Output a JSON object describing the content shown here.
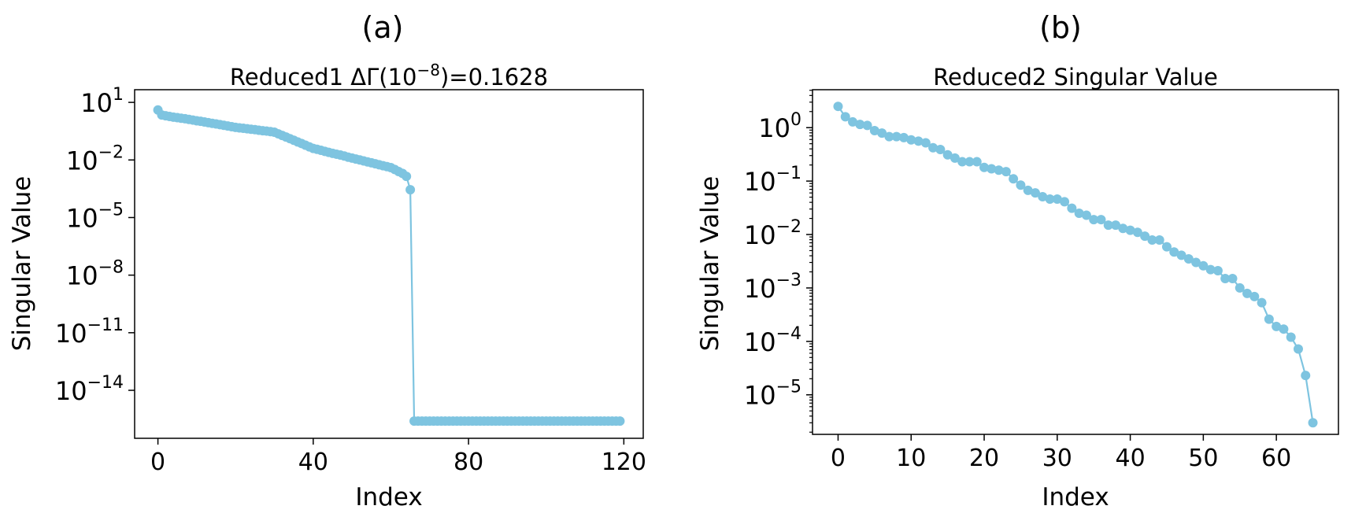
{
  "chart_data": [
    {
      "type": "line",
      "panel_label": "(a)",
      "title": {
        "prefix": "Reduced1 ΔΓ(10",
        "sup": "−8",
        "suffix": ")=0.1628"
      },
      "xlabel": "Index",
      "ylabel": "Singular Value",
      "yscale": "log",
      "xlim": [
        -6,
        125
      ],
      "ylim_log10": [
        1.66,
        -16.5
      ],
      "xticks": [
        {
          "value": 0,
          "label": "0"
        },
        {
          "value": 40,
          "label": "40"
        },
        {
          "value": 80,
          "label": "80"
        },
        {
          "value": 120,
          "label": "120"
        }
      ],
      "yticks": [
        {
          "exp": 1,
          "base": "10",
          "sup": "1"
        },
        {
          "exp": -2,
          "base": "10",
          "sup": "−2"
        },
        {
          "exp": -5,
          "base": "10",
          "sup": "−5"
        },
        {
          "exp": -8,
          "base": "10",
          "sup": "−8"
        },
        {
          "exp": -11,
          "base": "10",
          "sup": "−11"
        },
        {
          "exp": -14,
          "base": "10",
          "sup": "−14"
        }
      ],
      "color": "#7ec4e0",
      "x_start": 0,
      "values": [
        4.0,
        2.2,
        2.0,
        1.85,
        1.7,
        1.6,
        1.5,
        1.4,
        1.3,
        1.2,
        1.1,
        1.03,
        0.95,
        0.88,
        0.81,
        0.75,
        0.69,
        0.64,
        0.59,
        0.54,
        0.5,
        0.47,
        0.45,
        0.42,
        0.4,
        0.38,
        0.355,
        0.335,
        0.32,
        0.3,
        0.28,
        0.23,
        0.19,
        0.157,
        0.129,
        0.106,
        0.087,
        0.072,
        0.059,
        0.048,
        0.04,
        0.036,
        0.032,
        0.028,
        0.025,
        0.022,
        0.02,
        0.018,
        0.016,
        0.014,
        0.0126,
        0.0112,
        0.01,
        0.0089,
        0.0079,
        0.0071,
        0.0063,
        0.0056,
        0.005,
        0.0045,
        0.004,
        0.0032,
        0.0025,
        0.002,
        0.0014,
        0.00028,
        2.5e-16,
        2.5e-16,
        2.5e-16,
        2.5e-16,
        2.5e-16,
        2.5e-16,
        2.5e-16,
        2.5e-16,
        2.5e-16,
        2.5e-16,
        2.5e-16,
        2.5e-16,
        2.5e-16,
        2.5e-16,
        2.5e-16,
        2.5e-16,
        2.5e-16,
        2.5e-16,
        2.5e-16,
        2.5e-16,
        2.5e-16,
        2.5e-16,
        2.5e-16,
        2.5e-16,
        2.5e-16,
        2.5e-16,
        2.5e-16,
        2.5e-16,
        2.5e-16,
        2.5e-16,
        2.5e-16,
        2.5e-16,
        2.5e-16,
        2.5e-16,
        2.5e-16,
        2.5e-16,
        2.5e-16,
        2.5e-16,
        2.5e-16,
        2.5e-16,
        2.5e-16,
        2.5e-16,
        2.5e-16,
        2.5e-16,
        2.5e-16,
        2.5e-16,
        2.5e-16,
        2.5e-16,
        2.5e-16,
        2.5e-16,
        2.5e-16,
        2.5e-16,
        2.5e-16,
        2.5e-16
      ]
    },
    {
      "type": "line",
      "panel_label": "(b)",
      "title": {
        "prefix": "Reduced2 Singular Value",
        "sup": "",
        "suffix": ""
      },
      "xlabel": "Index",
      "ylabel": "Singular Value",
      "yscale": "log",
      "xlim": [
        -3.5,
        68.5
      ],
      "ylim_log10": [
        0.71,
        -5.74
      ],
      "xticks": [
        {
          "value": 0,
          "label": "0"
        },
        {
          "value": 10,
          "label": "10"
        },
        {
          "value": 20,
          "label": "20"
        },
        {
          "value": 30,
          "label": "30"
        },
        {
          "value": 40,
          "label": "40"
        },
        {
          "value": 50,
          "label": "50"
        },
        {
          "value": 60,
          "label": "60"
        }
      ],
      "yticks": [
        {
          "exp": 0,
          "base": "10",
          "sup": "0"
        },
        {
          "exp": -1,
          "base": "10",
          "sup": "−1"
        },
        {
          "exp": -2,
          "base": "10",
          "sup": "−2"
        },
        {
          "exp": -3,
          "base": "10",
          "sup": "−3"
        },
        {
          "exp": -4,
          "base": "10",
          "sup": "−4"
        },
        {
          "exp": -5,
          "base": "10",
          "sup": "−5"
        }
      ],
      "minor_ticks": true,
      "color": "#7ec4e0",
      "x_start": 0,
      "values": [
        2.5,
        1.6,
        1.28,
        1.15,
        1.1,
        0.88,
        0.79,
        0.68,
        0.68,
        0.65,
        0.59,
        0.56,
        0.52,
        0.42,
        0.39,
        0.31,
        0.27,
        0.23,
        0.23,
        0.23,
        0.18,
        0.17,
        0.16,
        0.15,
        0.11,
        0.084,
        0.067,
        0.06,
        0.051,
        0.046,
        0.046,
        0.041,
        0.031,
        0.025,
        0.023,
        0.019,
        0.019,
        0.015,
        0.015,
        0.013,
        0.012,
        0.011,
        0.0093,
        0.0079,
        0.0079,
        0.0059,
        0.0047,
        0.0041,
        0.0035,
        0.003,
        0.0026,
        0.0022,
        0.0021,
        0.0015,
        0.0015,
        0.001,
        0.00079,
        0.00069,
        0.00053,
        0.00026,
        0.00019,
        0.00017,
        0.00012,
        7.2e-05,
        2.3e-05,
        3e-06
      ]
    }
  ]
}
